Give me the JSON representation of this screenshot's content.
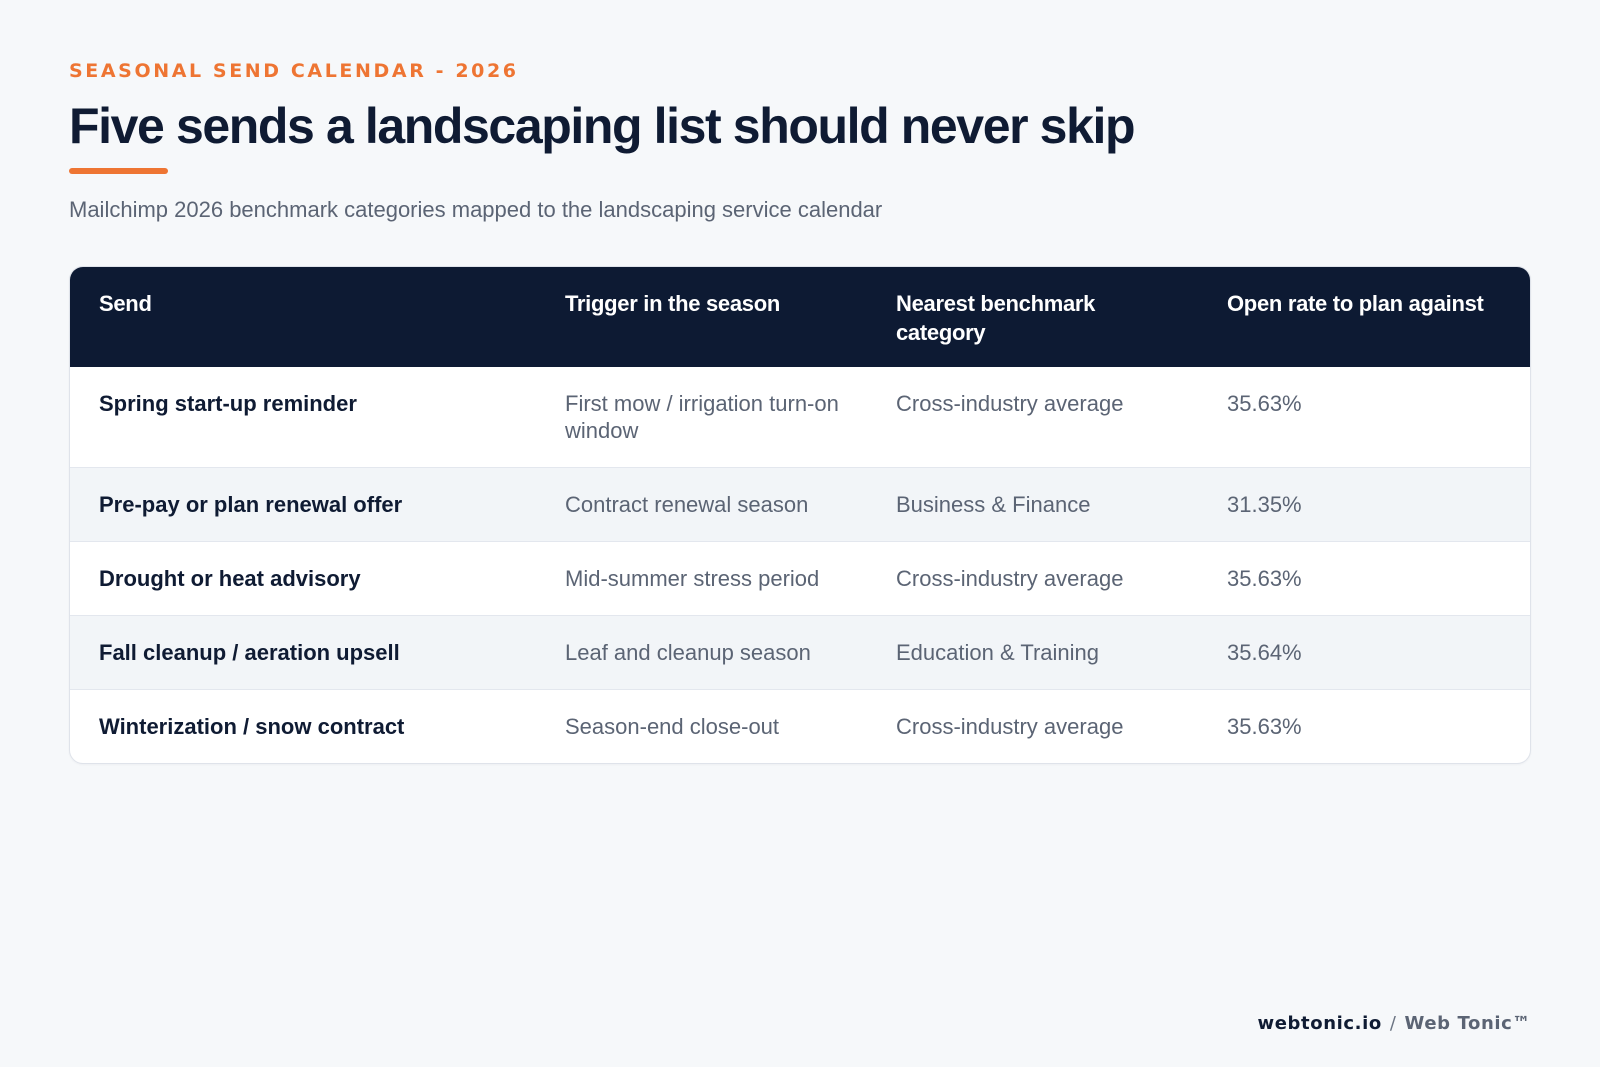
{
  "header": {
    "eyebrow": "SEASONAL SEND CALENDAR - 2026",
    "title": "Five sends a landscaping list should never skip",
    "subtitle": "Mailchimp 2026 benchmark categories mapped to the landscaping service calendar"
  },
  "table": {
    "columns": [
      "Send",
      "Trigger in the season",
      "Nearest benchmark category",
      "Open rate to plan against"
    ],
    "rows": [
      {
        "send": "Spring start-up reminder",
        "trigger": "First mow / irrigation turn-on window",
        "category": "Cross-industry average",
        "open_rate": "35.63%"
      },
      {
        "send": "Pre-pay or plan renewal offer",
        "trigger": "Contract renewal season",
        "category": "Business & Finance",
        "open_rate": "31.35%"
      },
      {
        "send": "Drought or heat advisory",
        "trigger": "Mid-summer stress period",
        "category": "Cross-industry average",
        "open_rate": "35.63%"
      },
      {
        "send": "Fall cleanup / aeration upsell",
        "trigger": "Leaf and cleanup season",
        "category": "Education & Training",
        "open_rate": "35.64%"
      },
      {
        "send": "Winterization / snow contract",
        "trigger": "Season-end close-out",
        "category": "Cross-industry average",
        "open_rate": "35.63%"
      }
    ]
  },
  "footer": {
    "site": "webtonic.io",
    "separator": "/",
    "brand": "Web Tonic™"
  },
  "colors": {
    "accent": "#ee7533",
    "navy": "#0d1a33",
    "background": "#f6f8fa",
    "muted_text": "#5b6474"
  }
}
